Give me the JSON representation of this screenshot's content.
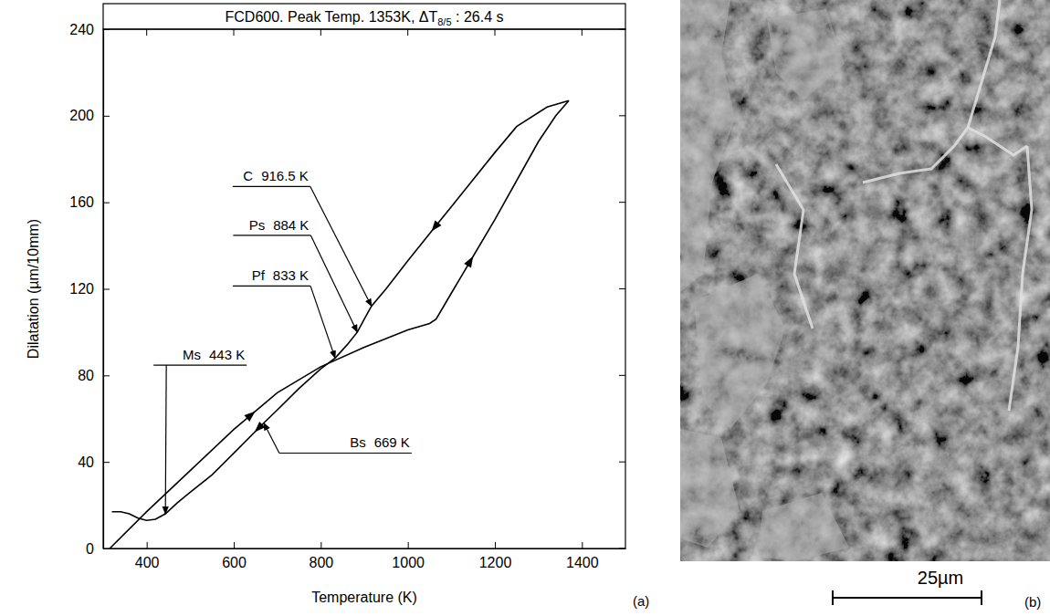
{
  "chart_data": {
    "type": "line",
    "title": "FCD600. Peak Temp. 1353K, ΔT8/5 : 26.4 s",
    "xlabel": "Temperature (K)",
    "ylabel": "Dilatation (µm/10mm)",
    "panel": "(a)",
    "xlim": [
      300,
      1500
    ],
    "ylim": [
      0,
      240
    ],
    "xticks": [
      400,
      600,
      800,
      1000,
      1200,
      1400
    ],
    "yticks": [
      0,
      40,
      80,
      120,
      160,
      200,
      240
    ],
    "grid": false,
    "series": [
      {
        "color": "#000000",
        "marker": "arrow",
        "line_style": "solid",
        "x": [
          315,
          400,
          500,
          600,
          700,
          800,
          900,
          1000,
          1050,
          1065,
          1100,
          1200,
          1300,
          1340,
          1370
        ],
        "values": [
          0,
          17,
          36,
          55,
          72,
          84,
          93,
          101,
          104,
          106,
          118,
          152,
          188,
          200,
          207
        ]
      },
      {
        "color": "#000000",
        "marker": "arrow",
        "line_style": "solid",
        "x": [
          1370,
          1320,
          1250,
          1200,
          1100,
          1000,
          950,
          916.5,
          900,
          884,
          860,
          833,
          800,
          750,
          700,
          669,
          600,
          550,
          500,
          470,
          443,
          420,
          400,
          380,
          360,
          340,
          320
        ],
        "values": [
          207,
          204,
          195,
          183,
          158,
          133,
          120,
          112,
          106,
          100,
          94,
          88,
          83,
          74,
          64,
          58,
          44,
          34,
          26,
          21,
          16,
          13.5,
          13,
          14,
          16,
          17,
          17
        ]
      }
    ],
    "annotations": [
      {
        "label": "C",
        "text": "916.5 K",
        "x": 916.5,
        "y": 112
      },
      {
        "label": "Ps",
        "text": "884 K",
        "x": 884,
        "y": 100
      },
      {
        "label": "Pf",
        "text": "833 K",
        "x": 833,
        "y": 88
      },
      {
        "label": "Ms",
        "text": "443 K",
        "x": 443,
        "y": 16
      },
      {
        "label": "Bs",
        "text": "669 K",
        "x": 669,
        "y": 58
      }
    ]
  },
  "image": {
    "scale_bar": "25µm",
    "label": "(b)"
  }
}
